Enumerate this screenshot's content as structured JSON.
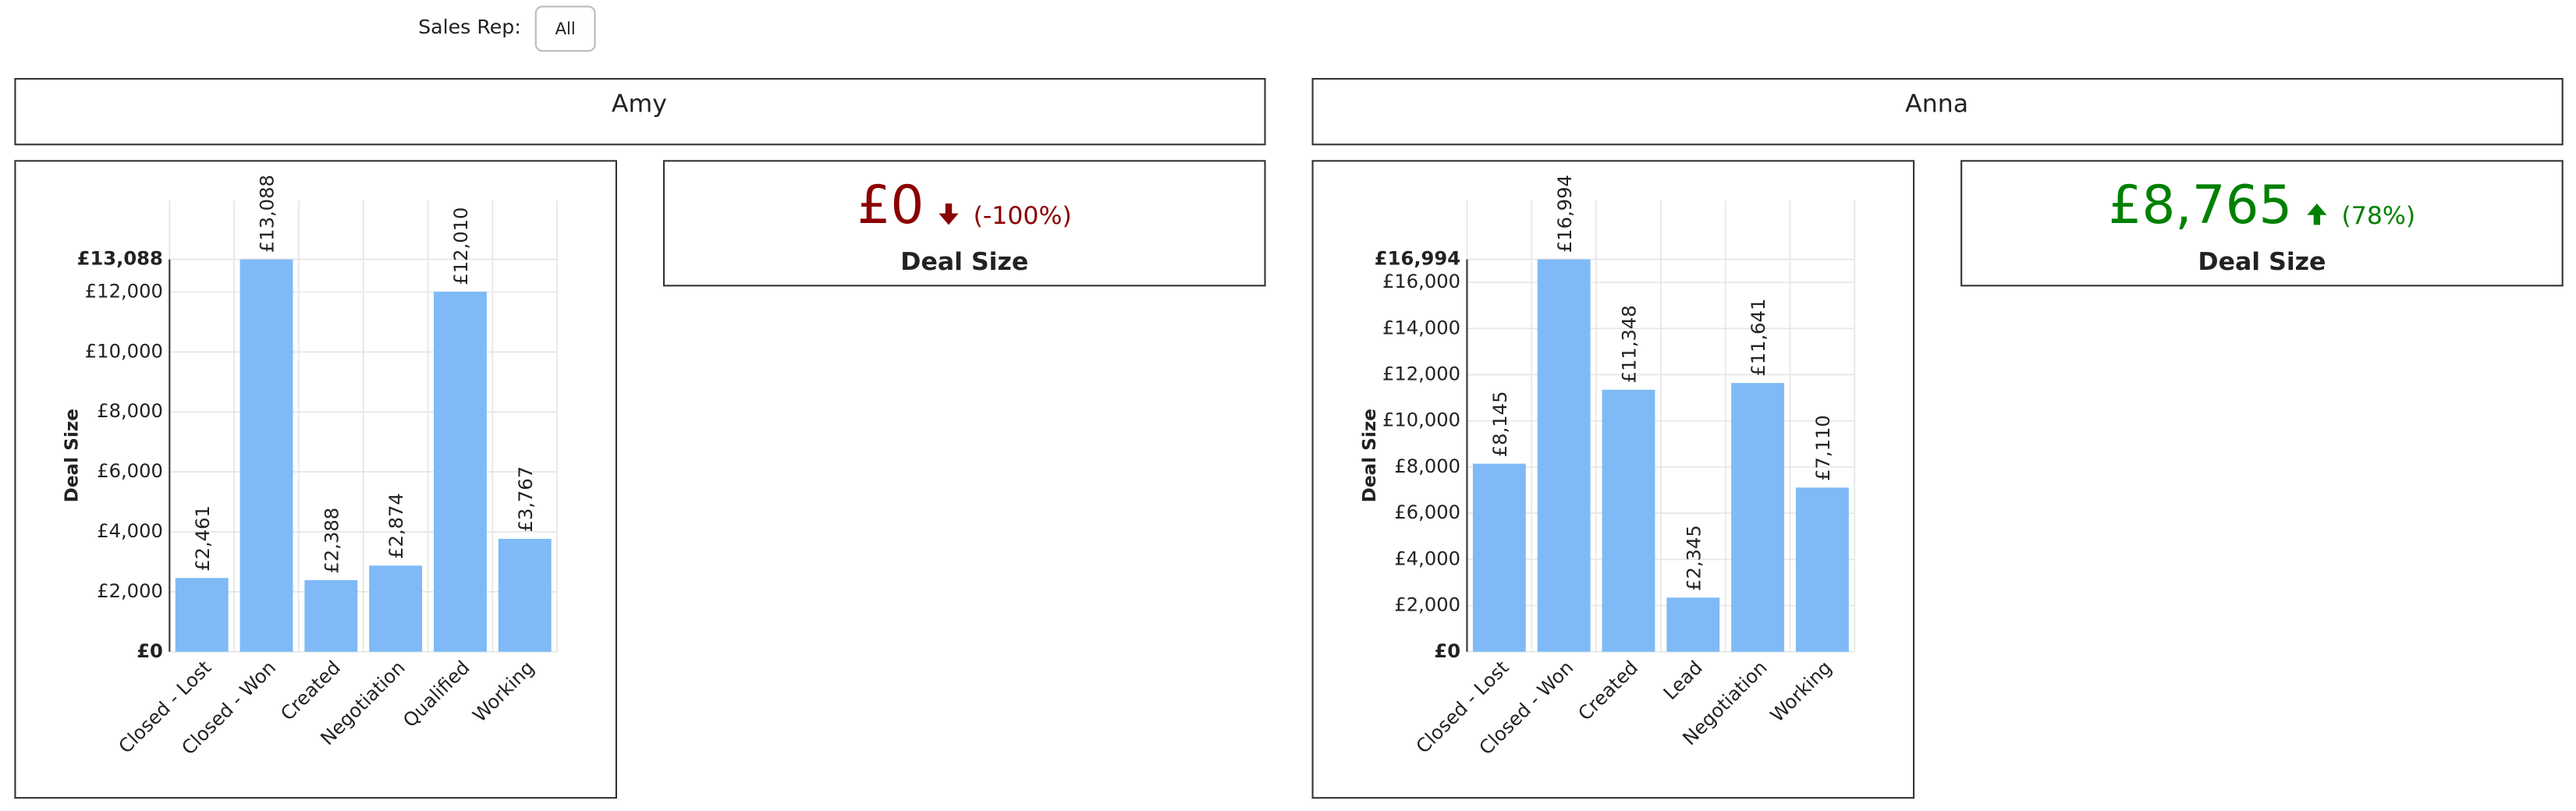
{
  "filter": {
    "label": "Sales Rep:",
    "value": "All"
  },
  "panels": [
    {
      "name": "Amy",
      "kpi": {
        "value": "£0",
        "change": "(-100%)",
        "direction": "down",
        "label": "Deal Size",
        "color": "#8b0000"
      }
    },
    {
      "name": "Anna",
      "kpi": {
        "value": "£8,765",
        "change": "(78%)",
        "direction": "up",
        "label": "Deal Size",
        "color": "#008000"
      }
    }
  ],
  "chart_data": [
    {
      "type": "bar",
      "y_label": "Deal Size",
      "color": "#7fbaf7",
      "grid": true,
      "categories": [
        "Closed - Lost",
        "Closed - Won",
        "Created",
        "Negotiation",
        "Qualified",
        "Working"
      ],
      "values": [
        2461,
        13088,
        2388,
        2874,
        12010,
        3767
      ],
      "value_labels": [
        "£2,461",
        "£13,088",
        "£2,388",
        "£2,874",
        "£12,010",
        "£3,767"
      ],
      "ylim": [
        0,
        13088
      ],
      "yticks": [
        {
          "value": 0,
          "label": "£0"
        },
        {
          "value": 2000,
          "label": "£2,000"
        },
        {
          "value": 4000,
          "label": "£4,000"
        },
        {
          "value": 6000,
          "label": "£6,000"
        },
        {
          "value": 8000,
          "label": "£8,000"
        },
        {
          "value": 10000,
          "label": "£10,000"
        },
        {
          "value": 12000,
          "label": "£12,000"
        },
        {
          "value": 13088,
          "label": "£13,088"
        }
      ]
    },
    {
      "type": "bar",
      "y_label": "Deal Size",
      "color": "#7fbaf7",
      "grid": true,
      "categories": [
        "Closed - Lost",
        "Closed - Won",
        "Created",
        "Lead",
        "Negotiation",
        "Working"
      ],
      "values": [
        8145,
        16994,
        11348,
        2345,
        11641,
        7110
      ],
      "value_labels": [
        "£8,145",
        "£16,994",
        "£11,348",
        "£2,345",
        "£11,641",
        "£7,110"
      ],
      "ylim": [
        0,
        16994
      ],
      "yticks": [
        {
          "value": 0,
          "label": "£0"
        },
        {
          "value": 2000,
          "label": "£2,000"
        },
        {
          "value": 4000,
          "label": "£4,000"
        },
        {
          "value": 6000,
          "label": "£6,000"
        },
        {
          "value": 8000,
          "label": "£8,000"
        },
        {
          "value": 10000,
          "label": "£10,000"
        },
        {
          "value": 12000,
          "label": "£12,000"
        },
        {
          "value": 14000,
          "label": "£14,000"
        },
        {
          "value": 16000,
          "label": "£16,000"
        },
        {
          "value": 16994,
          "label": "£16,994"
        }
      ]
    }
  ]
}
